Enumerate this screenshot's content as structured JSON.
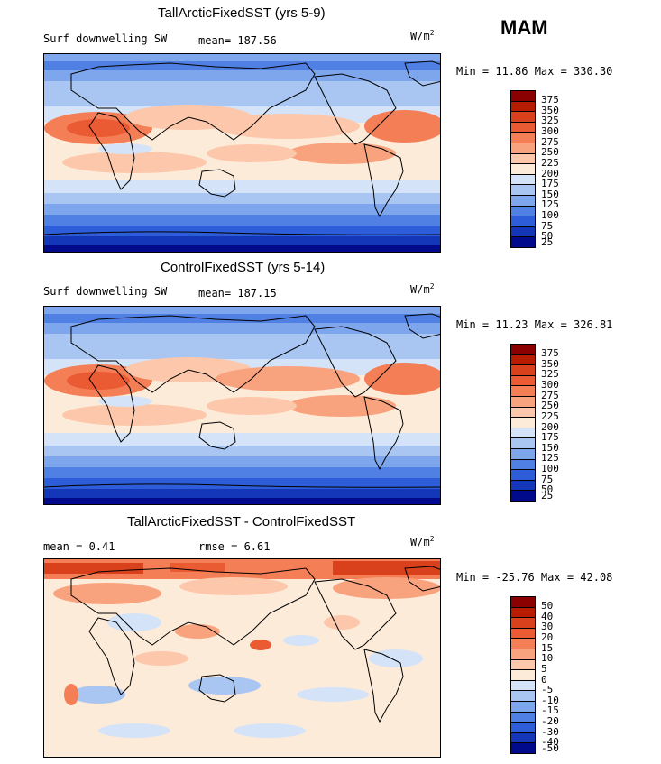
{
  "season": "MAM",
  "panels": [
    {
      "title": "TallArcticFixedSST (yrs 5-9)",
      "var_label": "Surf downwelling SW",
      "stat1": "mean= 187.56",
      "stat2": "",
      "units": "W/m",
      "units_sup": "2",
      "minmax": "Min =  11.86 Max = 330.30",
      "colorbar_labels": [
        "375",
        "350",
        "325",
        "300",
        "275",
        "250",
        "225",
        "200",
        "175",
        "150",
        "125",
        "100",
        "75",
        "50",
        "25"
      ]
    },
    {
      "title": "ControlFixedSST (yrs 5-14)",
      "var_label": "Surf downwelling SW",
      "stat1": "mean= 187.15",
      "stat2": "",
      "units": "W/m",
      "units_sup": "2",
      "minmax": "Min =  11.23 Max = 326.81",
      "colorbar_labels": [
        "375",
        "350",
        "325",
        "300",
        "275",
        "250",
        "225",
        "200",
        "175",
        "150",
        "125",
        "100",
        "75",
        "50",
        "25"
      ]
    },
    {
      "title": "TallArcticFixedSST - ControlFixedSST",
      "var_label": "mean =   0.41",
      "stat1": "rmse =   6.61",
      "stat2": "",
      "units": "W/m",
      "units_sup": "2",
      "minmax": "Min = -25.76 Max =  42.08",
      "colorbar_labels": [
        "50",
        "40",
        "30",
        "20",
        "15",
        "10",
        "5",
        "0",
        "-5",
        "-10",
        "-15",
        "-20",
        "-30",
        "-40",
        "-50"
      ]
    }
  ],
  "chart_data": [
    {
      "type": "heatmap",
      "title": "TallArcticFixedSST (yrs 5-9)",
      "variable": "Surf downwelling SW",
      "units": "W/m2",
      "mean": 187.56,
      "min": 11.86,
      "max": 330.3,
      "levels": [
        25,
        50,
        75,
        100,
        125,
        150,
        175,
        200,
        225,
        250,
        275,
        300,
        325,
        350,
        375
      ]
    },
    {
      "type": "heatmap",
      "title": "ControlFixedSST (yrs 5-14)",
      "variable": "Surf downwelling SW",
      "units": "W/m2",
      "mean": 187.15,
      "min": 11.23,
      "max": 326.81,
      "levels": [
        25,
        50,
        75,
        100,
        125,
        150,
        175,
        200,
        225,
        250,
        275,
        300,
        325,
        350,
        375
      ]
    },
    {
      "type": "heatmap",
      "title": "TallArcticFixedSST - ControlFixedSST",
      "units": "W/m2",
      "mean": 0.41,
      "rmse": 6.61,
      "min": -25.76,
      "max": 42.08,
      "levels": [
        -50,
        -40,
        -30,
        -20,
        -15,
        -10,
        -5,
        0,
        5,
        10,
        15,
        20,
        30,
        40,
        50
      ]
    }
  ],
  "colors": {
    "scale": [
      "#8b0000",
      "#b71c00",
      "#d9401c",
      "#ea5a33",
      "#f47e55",
      "#f9a27e",
      "#fcc7aa",
      "#fdebd9",
      "#d4e3f7",
      "#a9c6f2",
      "#7ea6ec",
      "#5180e4",
      "#2d5dd8",
      "#1437b9",
      "#000a8a"
    ]
  }
}
